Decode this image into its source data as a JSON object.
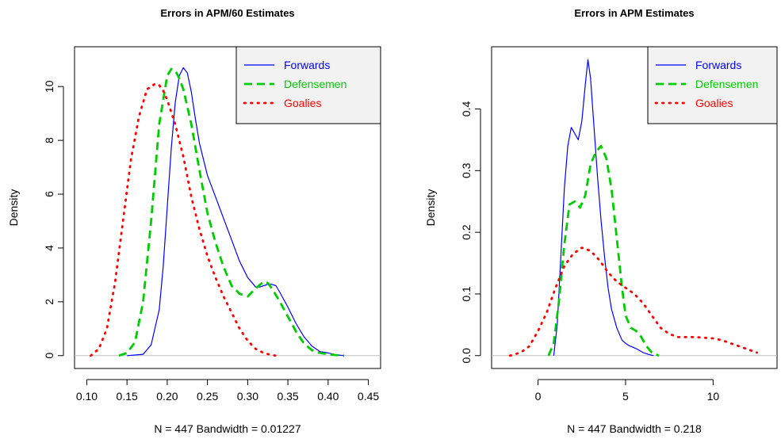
{
  "chart_data": [
    {
      "type": "line",
      "title": "Errors in APM/60 Estimates",
      "xlabel": "N = 447   Bandwidth = 0.01227",
      "ylabel": "Density",
      "xlim": [
        0.1,
        0.45
      ],
      "ylim": [
        0,
        11
      ],
      "x_ticks": [
        0.1,
        0.15,
        0.2,
        0.25,
        0.3,
        0.35,
        0.4,
        0.45
      ],
      "x_tick_labels": [
        "0.10",
        "0.15",
        "0.20",
        "0.25",
        "0.30",
        "0.35",
        "0.40",
        "0.45"
      ],
      "y_ticks": [
        0,
        2,
        4,
        6,
        8,
        10
      ],
      "y_tick_labels": [
        "0",
        "2",
        "4",
        "6",
        "8",
        "10"
      ],
      "grid": false,
      "legend_position": "top-right",
      "series": [
        {
          "name": "Forwards",
          "color": "#0000ff",
          "dash": "solid",
          "x": [
            0.15,
            0.17,
            0.18,
            0.19,
            0.195,
            0.2,
            0.205,
            0.21,
            0.215,
            0.22,
            0.225,
            0.23,
            0.235,
            0.24,
            0.25,
            0.26,
            0.27,
            0.28,
            0.29,
            0.3,
            0.31,
            0.315,
            0.32,
            0.325,
            0.33,
            0.335,
            0.34,
            0.35,
            0.36,
            0.37,
            0.38,
            0.39,
            0.4,
            0.41,
            0.42
          ],
          "y": [
            0.0,
            0.05,
            0.4,
            1.7,
            3.3,
            5.5,
            7.7,
            9.4,
            10.4,
            10.7,
            10.5,
            9.8,
            8.8,
            7.9,
            6.7,
            5.9,
            5.1,
            4.3,
            3.5,
            2.9,
            2.55,
            2.55,
            2.6,
            2.65,
            2.65,
            2.6,
            2.35,
            1.8,
            1.2,
            0.7,
            0.35,
            0.15,
            0.1,
            0.03,
            0.0
          ]
        },
        {
          "name": "Defensemen",
          "color": "#00cd00",
          "dash": "dashed",
          "x": [
            0.14,
            0.15,
            0.16,
            0.17,
            0.18,
            0.19,
            0.2,
            0.205,
            0.21,
            0.215,
            0.22,
            0.23,
            0.24,
            0.25,
            0.26,
            0.27,
            0.28,
            0.29,
            0.3,
            0.31,
            0.32,
            0.325,
            0.33,
            0.34,
            0.35,
            0.36,
            0.37,
            0.38,
            0.39,
            0.4,
            0.41,
            0.42
          ],
          "y": [
            0.0,
            0.1,
            0.5,
            2.0,
            5.0,
            8.6,
            10.4,
            10.65,
            10.6,
            10.3,
            9.9,
            8.6,
            6.9,
            5.3,
            4.2,
            3.3,
            2.6,
            2.3,
            2.2,
            2.5,
            2.75,
            2.7,
            2.5,
            2.0,
            1.45,
            0.9,
            0.45,
            0.2,
            0.1,
            0.05,
            0.02,
            0.0
          ]
        },
        {
          "name": "Goalies",
          "color": "#ff0000",
          "dash": "dotted",
          "x": [
            0.105,
            0.115,
            0.125,
            0.135,
            0.145,
            0.155,
            0.165,
            0.175,
            0.185,
            0.19,
            0.195,
            0.2,
            0.21,
            0.22,
            0.23,
            0.24,
            0.25,
            0.26,
            0.27,
            0.28,
            0.29,
            0.3,
            0.31,
            0.32,
            0.33,
            0.335
          ],
          "y": [
            0.0,
            0.25,
            1.0,
            2.7,
            5.0,
            7.3,
            8.9,
            9.9,
            10.1,
            10.05,
            9.85,
            9.5,
            8.6,
            7.4,
            5.9,
            4.7,
            3.7,
            2.9,
            2.2,
            1.6,
            1.0,
            0.55,
            0.25,
            0.1,
            0.02,
            0.0
          ]
        }
      ]
    },
    {
      "type": "line",
      "title": "Errors in APM Estimates",
      "xlabel": "N = 447   Bandwidth = 0.218",
      "ylabel": "Density",
      "xlim": [
        -2,
        13
      ],
      "ylim": [
        0,
        0.48
      ],
      "x_ticks": [
        0,
        5,
        10
      ],
      "x_tick_labels": [
        "0",
        "5",
        "10"
      ],
      "y_ticks": [
        0.0,
        0.1,
        0.2,
        0.3,
        0.4
      ],
      "y_tick_labels": [
        "0.0",
        "0.1",
        "0.2",
        "0.3",
        "0.4"
      ],
      "grid": false,
      "legend_position": "top-right",
      "series": [
        {
          "name": "Forwards",
          "color": "#0000ff",
          "dash": "solid",
          "x": [
            0.9,
            1.1,
            1.3,
            1.5,
            1.7,
            1.9,
            2.1,
            2.3,
            2.5,
            2.7,
            2.85,
            3.0,
            3.2,
            3.4,
            3.6,
            3.8,
            4.0,
            4.2,
            4.5,
            4.8,
            5.0,
            5.2,
            5.4,
            5.7,
            6.0,
            6.3,
            6.6
          ],
          "y": [
            0.0,
            0.05,
            0.16,
            0.27,
            0.34,
            0.37,
            0.36,
            0.35,
            0.38,
            0.44,
            0.48,
            0.45,
            0.37,
            0.29,
            0.22,
            0.16,
            0.11,
            0.075,
            0.045,
            0.025,
            0.02,
            0.016,
            0.014,
            0.01,
            0.005,
            0.002,
            0.0
          ]
        },
        {
          "name": "Defensemen",
          "color": "#00cd00",
          "dash": "dashed",
          "x": [
            0.6,
            0.9,
            1.2,
            1.5,
            1.8,
            2.1,
            2.4,
            2.7,
            3.0,
            3.3,
            3.6,
            3.9,
            4.2,
            4.5,
            4.8,
            5.0,
            5.3,
            5.6,
            5.9,
            6.2,
            6.5,
            6.9
          ],
          "y": [
            0.0,
            0.02,
            0.09,
            0.18,
            0.245,
            0.25,
            0.24,
            0.26,
            0.31,
            0.33,
            0.34,
            0.32,
            0.27,
            0.19,
            0.11,
            0.065,
            0.045,
            0.04,
            0.03,
            0.015,
            0.005,
            0.0
          ]
        },
        {
          "name": "Goalies",
          "color": "#ff0000",
          "dash": "dotted",
          "x": [
            -1.6,
            -1.0,
            -0.5,
            0.0,
            0.5,
            1.0,
            1.5,
            2.0,
            2.5,
            3.0,
            3.5,
            4.0,
            4.5,
            5.0,
            5.5,
            6.0,
            6.5,
            7.0,
            7.5,
            8.0,
            9.0,
            10.0,
            10.5,
            11.0,
            11.5,
            12.0,
            12.5
          ],
          "y": [
            0.0,
            0.005,
            0.015,
            0.04,
            0.07,
            0.11,
            0.145,
            0.165,
            0.175,
            0.17,
            0.155,
            0.135,
            0.12,
            0.11,
            0.1,
            0.085,
            0.065,
            0.045,
            0.035,
            0.03,
            0.03,
            0.028,
            0.025,
            0.02,
            0.015,
            0.01,
            0.005
          ]
        }
      ]
    }
  ]
}
